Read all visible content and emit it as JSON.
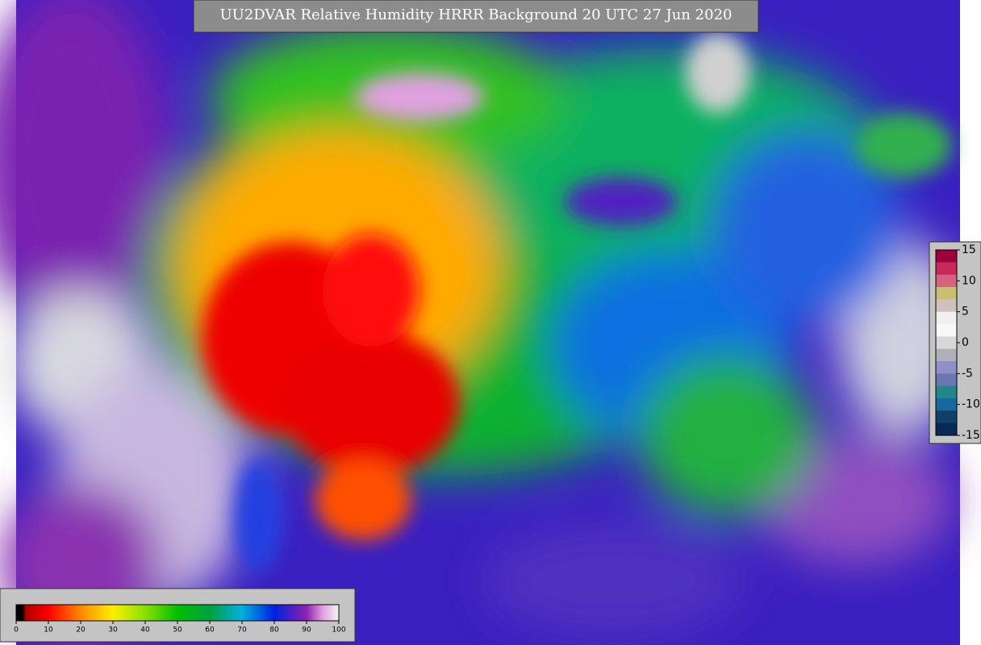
{
  "title": "UU2DVAR Relative Humidity HRRR Background  20 UTC 27 Jun 2020",
  "colorbar": {
    "ticks": [
      0,
      10,
      20,
      30,
      40,
      50,
      60,
      70,
      80,
      90,
      100
    ]
  },
  "difference_colorbar": {
    "ticks": [
      15,
      10,
      5,
      0,
      -5,
      -10,
      -15
    ]
  }
}
